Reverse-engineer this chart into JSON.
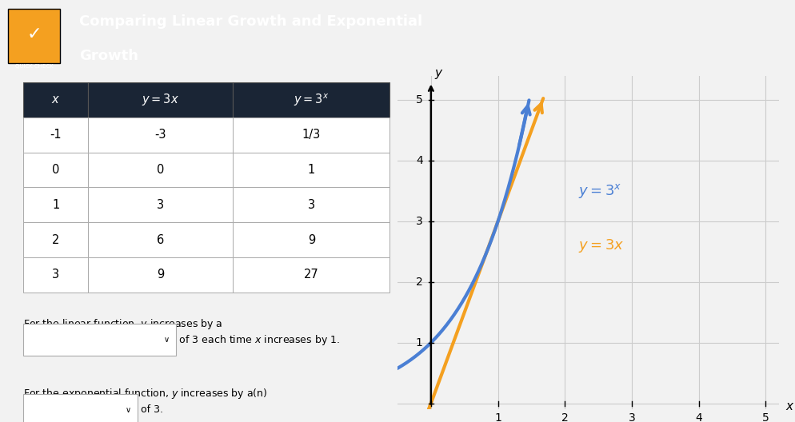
{
  "title_line1": "Comparing Linear Growth and Exponential",
  "title_line2": "Growth",
  "header_bg": "#4a5568",
  "body_bg": "#f2f2f2",
  "table_rows": [
    [
      "-1",
      "-3",
      "1/3"
    ],
    [
      "0",
      "0",
      "1"
    ],
    [
      "1",
      "3",
      "3"
    ],
    [
      "2",
      "6",
      "9"
    ],
    [
      "3",
      "9",
      "27"
    ]
  ],
  "linear_color": "#f4a020",
  "exp_color": "#4a7fd4",
  "grid_color": "#cccccc",
  "graph_bg": "#f0f0f0"
}
